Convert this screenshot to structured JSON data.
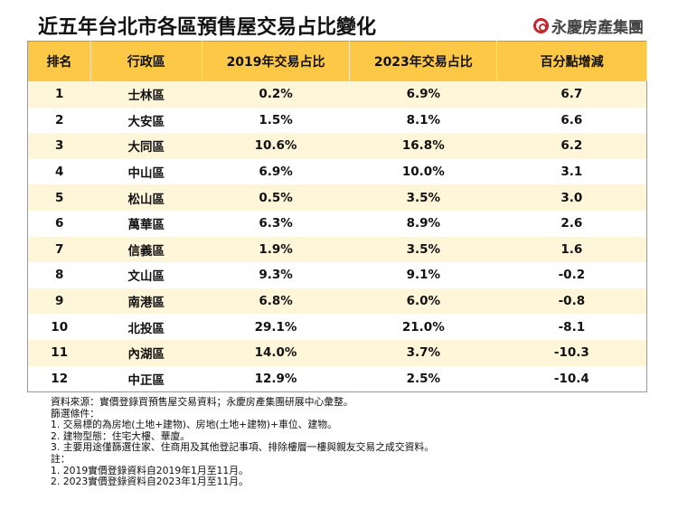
{
  "title": "近五年台北市各區預售屋交易占比變化",
  "logo": "永慶房產集團",
  "colors": {
    "header": "#fcc845",
    "odd_row": "#fff5d8",
    "logo_red": "#c0282e"
  },
  "table": {
    "headers": [
      "排名",
      "行政區",
      "2019年交易占比",
      "2023年交易占比",
      "百分點增減"
    ],
    "rows": [
      [
        "1",
        "士林區",
        "0.2%",
        "6.9%",
        "6.7"
      ],
      [
        "2",
        "大安區",
        "1.5%",
        "8.1%",
        "6.6"
      ],
      [
        "3",
        "大同區",
        "10.6%",
        "16.8%",
        "6.2"
      ],
      [
        "4",
        "中山區",
        "6.9%",
        "10.0%",
        "3.1"
      ],
      [
        "5",
        "松山區",
        "0.5%",
        "3.5%",
        "3.0"
      ],
      [
        "6",
        "萬華區",
        "6.3%",
        "8.9%",
        "2.6"
      ],
      [
        "7",
        "信義區",
        "1.9%",
        "3.5%",
        "1.6"
      ],
      [
        "8",
        "文山區",
        "9.3%",
        "9.1%",
        "-0.2"
      ],
      [
        "9",
        "南港區",
        "6.8%",
        "6.0%",
        "-0.8"
      ],
      [
        "10",
        "北投區",
        "29.1%",
        "21.0%",
        "-8.1"
      ],
      [
        "11",
        "內湖區",
        "14.0%",
        "3.7%",
        "-10.3"
      ],
      [
        "12",
        "中正區",
        "12.9%",
        "2.5%",
        "-10.4"
      ]
    ]
  },
  "notes": [
    "資料來源：實價登錄買預售屋交易資料；永慶房產集團研展中心彙整。",
    "篩選條件：",
    "1. 交易標的為房地(土地+建物)、房地(土地+建物)+車位、建物。",
    "2. 建物型態：住宅大樓、華廈。",
    "3. 主要用途僅篩選住家、住商用及其他登記事項、排除樓層一樓與親友交易之成交資料。",
    "註：",
    "1. 2019實價登錄資料自2019年1月至11月。",
    "2. 2023實價登錄資料自2023年1月至11月。"
  ]
}
